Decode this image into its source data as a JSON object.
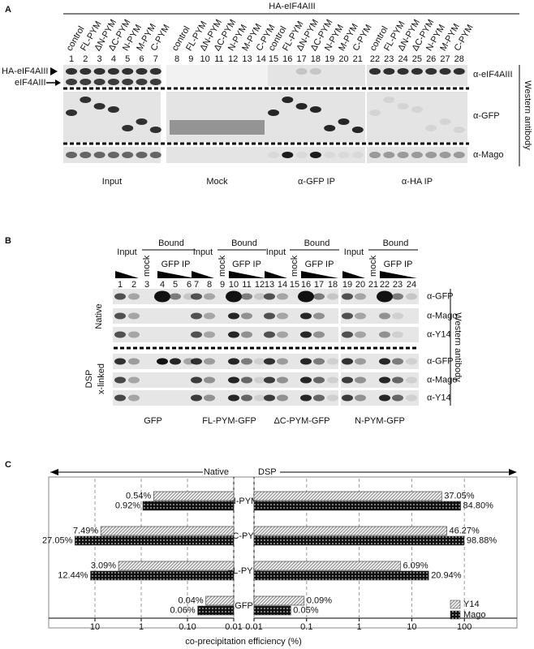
{
  "panel_a": {
    "letter": "A",
    "header": "HA-eIF4AIII",
    "left_labels": [
      "HA-eIF4AIII",
      "eIF4AIII"
    ],
    "antibodies": [
      "α-eIF4AIII",
      "α-GFP",
      "α-Mago"
    ],
    "side_label": "Western antibody",
    "groups": [
      {
        "name": "Input",
        "lanes": [
          {
            "number": 1,
            "label": "control"
          },
          {
            "number": 2,
            "label": "FL-PYM"
          },
          {
            "number": 3,
            "label": "ΔN-PYM"
          },
          {
            "number": 4,
            "label": "ΔC-PYM"
          },
          {
            "number": 5,
            "label": "N-PYM"
          },
          {
            "number": 6,
            "label": "M-PYM"
          },
          {
            "number": 7,
            "label": "C-PYM"
          }
        ]
      },
      {
        "name": "Mock",
        "lanes": [
          {
            "number": 8,
            "label": "control"
          },
          {
            "number": 9,
            "label": "FL-PYM"
          },
          {
            "number": 10,
            "label": "ΔN-PYM"
          },
          {
            "number": 11,
            "label": "ΔC-PYM"
          },
          {
            "number": 12,
            "label": "N-PYM"
          },
          {
            "number": 13,
            "label": "M-PYM"
          },
          {
            "number": 14,
            "label": "C-PYM"
          }
        ]
      },
      {
        "name": "α-GFP IP",
        "lanes": [
          {
            "number": 15,
            "label": "control"
          },
          {
            "number": 16,
            "label": "FL-PYM"
          },
          {
            "number": 17,
            "label": "ΔN-PYM"
          },
          {
            "number": 18,
            "label": "ΔC-PYM"
          },
          {
            "number": 19,
            "label": "N-PYM"
          },
          {
            "number": 20,
            "label": "M-PYM"
          },
          {
            "number": 21,
            "label": "C-PYM"
          }
        ]
      },
      {
        "name": "α-HA IP",
        "lanes": [
          {
            "number": 22,
            "label": "control"
          },
          {
            "number": 23,
            "label": "FL-PYM"
          },
          {
            "number": 24,
            "label": "ΔN-PYM"
          },
          {
            "number": 25,
            "label": "ΔC-PYM"
          },
          {
            "number": 26,
            "label": "N-PYM"
          },
          {
            "number": 27,
            "label": "M-PYM"
          },
          {
            "number": 28,
            "label": "C-PYM"
          }
        ]
      }
    ]
  },
  "panel_b": {
    "letter": "B",
    "conditions": [
      {
        "label": "Native"
      },
      {
        "lines": [
          "DSP",
          "x-linked"
        ]
      }
    ],
    "antibodies": [
      "α-GFP",
      "α-Mago",
      "α-Y14",
      "α-GFP",
      "α-Mago",
      "α-Y14"
    ],
    "side_label": "Western antibody",
    "groups": [
      {
        "name": "GFP",
        "input": "Input",
        "bound": "Bound",
        "mock": "mock",
        "ip": "GFP IP",
        "lanes": [
          1,
          2,
          3,
          4,
          5,
          6
        ]
      },
      {
        "name": "FL-PYM-GFP",
        "input": "Input",
        "bound": "Bound",
        "mock": "mock",
        "ip": "GFP IP",
        "lanes": [
          7,
          8,
          9,
          10,
          11,
          12
        ]
      },
      {
        "name": "ΔC-PYM-GFP",
        "input": "Input",
        "bound": "Bound",
        "mock": "mock",
        "ip": "GFP IP",
        "lanes": [
          13,
          14,
          15,
          16,
          17,
          18
        ]
      },
      {
        "name": "N-PYM-GFP",
        "input": "Input",
        "bound": "Bound",
        "mock": "mock",
        "ip": "GFP IP",
        "lanes": [
          19,
          20,
          21,
          22,
          23,
          24
        ]
      }
    ]
  },
  "panel_c": {
    "letter": "C"
  },
  "chart_data": [
    {
      "type": "bar",
      "orientation": "horizontal",
      "title": "Native",
      "xlabel": "co-precipitation efficiency (%)",
      "categories": [
        "N-PYM",
        "ΔC-PYM",
        "FL-PYM",
        "GFP"
      ],
      "log": true,
      "xlim": [
        100,
        0.01
      ],
      "xticks": [
        10,
        1,
        {
          "value": 0.1,
          "label": "0.10"
        },
        0.01
      ],
      "grid": true,
      "series": [
        {
          "color": "#9a9a9a",
          "pattern": "hatch",
          "values": [
            0.54,
            7.49,
            3.09,
            0.04
          ],
          "value_labels": [
            "0.54%",
            "7.49%",
            "3.09%",
            "0.04%"
          ]
        },
        {
          "color": "#111111",
          "pattern": "dots",
          "values": [
            0.92,
            27.05,
            12.44,
            0.06
          ],
          "value_labels": [
            "0.92%",
            "27.05%",
            "12.44%",
            "0.06%"
          ]
        }
      ]
    },
    {
      "type": "bar",
      "orientation": "horizontal",
      "title": "DSP",
      "log": true,
      "xlim": [
        0.01,
        1000
      ],
      "xticks": [
        0.01,
        0.1,
        1,
        10,
        100
      ],
      "grid": true,
      "legend": "lower right",
      "series": [
        {
          "name": "Y14",
          "color": "#9a9a9a",
          "pattern": "hatch",
          "values": [
            37.05,
            46.27,
            6.09,
            0.09
          ],
          "value_labels": [
            "37.05%",
            "46.27%",
            "6.09%",
            "0.09%"
          ]
        },
        {
          "name": "Mago",
          "color": "#111111",
          "pattern": "dots",
          "values": [
            84.8,
            98.88,
            20.94,
            0.05
          ],
          "value_labels": [
            "84.80%",
            "98.88%",
            "20.94%",
            "0.05%"
          ]
        }
      ]
    }
  ]
}
